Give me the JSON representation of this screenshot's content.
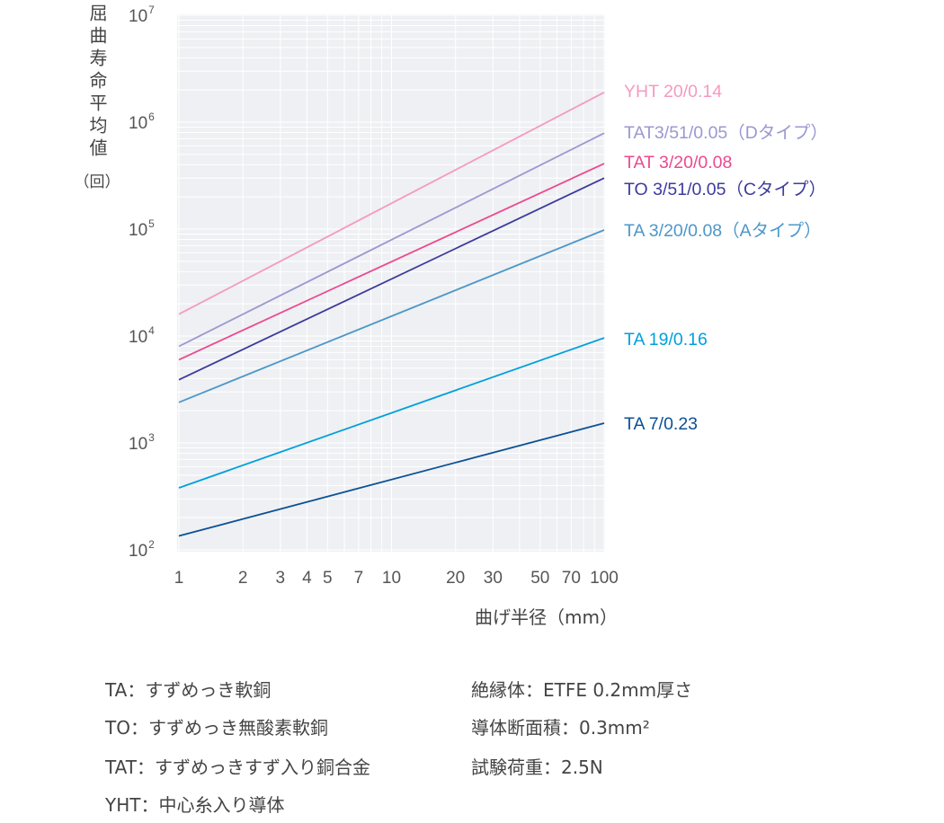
{
  "chart_data": {
    "type": "line",
    "xscale": "log",
    "yscale": "log",
    "xlim": [
      1,
      100
    ],
    "ylim": [
      100,
      10000000
    ],
    "grid": true,
    "legend_placement": "right",
    "xlabel": "曲げ半径（mm）",
    "ylabel": "屈曲寿命平均値",
    "ylabel_unit": "（回）",
    "xticks": [
      1,
      2,
      3,
      4,
      5,
      7,
      10,
      20,
      30,
      50,
      70,
      100
    ],
    "yticks": [
      100,
      1000,
      10000,
      100000,
      1000000,
      10000000
    ],
    "ytick_labels": [
      {
        "base": "10",
        "exp": "2"
      },
      {
        "base": "10",
        "exp": "3"
      },
      {
        "base": "10",
        "exp": "4"
      },
      {
        "base": "10",
        "exp": "5"
      },
      {
        "base": "10",
        "exp": "6"
      },
      {
        "base": "10",
        "exp": "7"
      }
    ],
    "series": [
      {
        "name": "YHT 20/0.14",
        "color": "#f59ac0",
        "x": [
          1,
          100
        ],
        "y": [
          16000,
          1900000
        ]
      },
      {
        "name": "TAT3/51/0.05（Dタイプ）",
        "color": "#9b98d1",
        "x": [
          1,
          100
        ],
        "y": [
          8000,
          790000
        ]
      },
      {
        "name": "TAT 3/20/0.08",
        "color": "#ea4a8f",
        "x": [
          1,
          100
        ],
        "y": [
          6000,
          410000
        ]
      },
      {
        "name": "TO 3/51/0.05（Cタイプ）",
        "color": "#3d3b9c",
        "x": [
          1,
          100
        ],
        "y": [
          3900,
          300000
        ]
      },
      {
        "name": "TA 3/20/0.08（Aタイプ）",
        "color": "#4d97c9",
        "x": [
          1,
          100
        ],
        "y": [
          2400,
          98000
        ]
      },
      {
        "name": "TA 19/0.16",
        "color": "#00a0dc",
        "x": [
          1,
          100
        ],
        "y": [
          380,
          9600
        ]
      },
      {
        "name": "TA 7/0.23",
        "color": "#0b5195",
        "x": [
          1,
          100
        ],
        "y": [
          135,
          1530
        ]
      }
    ]
  },
  "notes": {
    "left": [
      "TA：すずめっき軟銅",
      "TO：すずめっき無酸素軟銅",
      "TAT：すずめっきすず入り銅合金",
      "YHT：中心糸入り導体"
    ],
    "right": [
      "絶縁体：ETFE 0.2mm厚さ",
      "導体断面積：0.3mm²",
      "試験荷重：2.5N"
    ]
  }
}
